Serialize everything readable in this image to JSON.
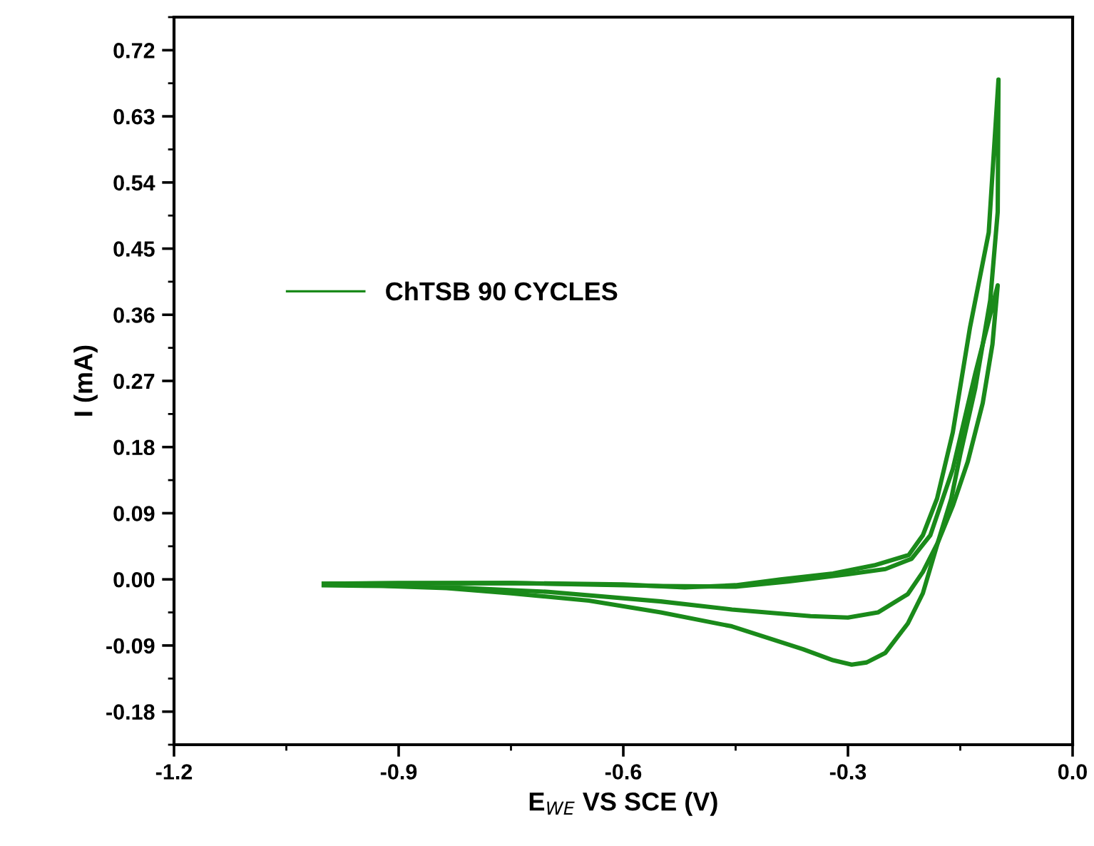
{
  "chart_data": {
    "type": "line",
    "xlabel": "E$_{WE}$ VS SCE (V)",
    "ylabel": "I (mA)",
    "xlim": [
      -1.2,
      0.0
    ],
    "xticks": [
      {
        "value": -1.2,
        "label": "-1.2"
      },
      {
        "value": -0.9,
        "label": "-0.9"
      },
      {
        "value": -0.6,
        "label": "-0.6"
      },
      {
        "value": -0.3,
        "label": "-0.3"
      },
      {
        "value": 0.0,
        "label": "0.0"
      }
    ],
    "ylim": [
      -0.225,
      0.765
    ],
    "yticks": [
      {
        "value": -0.18,
        "label": "-0.18"
      },
      {
        "value": -0.09,
        "label": "-0.09"
      },
      {
        "value": 0.0,
        "label": "0.00"
      },
      {
        "value": 0.09,
        "label": "0.09"
      },
      {
        "value": 0.18,
        "label": "0.18"
      },
      {
        "value": 0.27,
        "label": "0.27"
      },
      {
        "value": 0.36,
        "label": "0.36"
      },
      {
        "value": 0.45,
        "label": "0.45"
      },
      {
        "value": 0.54,
        "label": "0.54"
      },
      {
        "value": 0.63,
        "label": "0.63"
      },
      {
        "value": 0.72,
        "label": "0.72"
      }
    ],
    "legend": "top left",
    "grid": false,
    "marker": "none",
    "line_style": "solid",
    "series": [
      {
        "name": "ChTSB 90 CYCLES",
        "color": "#1a8a1a",
        "x": [
          -1.0,
          -0.9,
          -0.75,
          -0.6,
          -0.518,
          -0.45,
          -0.39,
          -0.32,
          -0.265,
          -0.219,
          -0.2,
          -0.181,
          -0.16,
          -0.137,
          -0.112,
          -0.099,
          -0.1,
          -0.11,
          -0.13,
          -0.15,
          -0.162,
          -0.18,
          -0.2,
          -0.22,
          -0.25,
          -0.275,
          -0.295,
          -0.32,
          -0.36,
          -0.455,
          -0.55,
          -0.646,
          -0.75,
          -0.836,
          -0.92,
          -1.0
        ],
        "values": [
          -0.006,
          -0.005,
          -0.005,
          -0.007,
          -0.011,
          -0.008,
          0.0,
          0.008,
          0.019,
          0.033,
          0.06,
          0.11,
          0.2,
          0.343,
          0.472,
          0.68,
          0.5,
          0.38,
          0.26,
          0.17,
          0.11,
          0.05,
          -0.019,
          -0.06,
          -0.1,
          -0.113,
          -0.116,
          -0.11,
          -0.095,
          -0.064,
          -0.045,
          -0.029,
          -0.019,
          -0.012,
          -0.009,
          -0.008
        ]
      },
      {
        "color": "#1a8a1a",
        "x": [
          -1.0,
          -0.75,
          -0.55,
          -0.45,
          -0.38,
          -0.3,
          -0.25,
          -0.215,
          -0.19,
          -0.16,
          -0.13,
          -0.11,
          -0.1,
          -0.107,
          -0.12,
          -0.14,
          -0.16,
          -0.18,
          -0.2,
          -0.22,
          -0.26,
          -0.3,
          -0.35,
          -0.455,
          -0.55,
          -0.7,
          -0.85,
          -1.0
        ],
        "values": [
          -0.006,
          -0.005,
          -0.009,
          -0.01,
          -0.003,
          0.007,
          0.014,
          0.028,
          0.06,
          0.15,
          0.28,
          0.36,
          0.4,
          0.32,
          0.24,
          0.16,
          0.1,
          0.05,
          0.01,
          -0.02,
          -0.045,
          -0.052,
          -0.05,
          -0.041,
          -0.03,
          -0.017,
          -0.01,
          -0.007
        ]
      }
    ]
  }
}
